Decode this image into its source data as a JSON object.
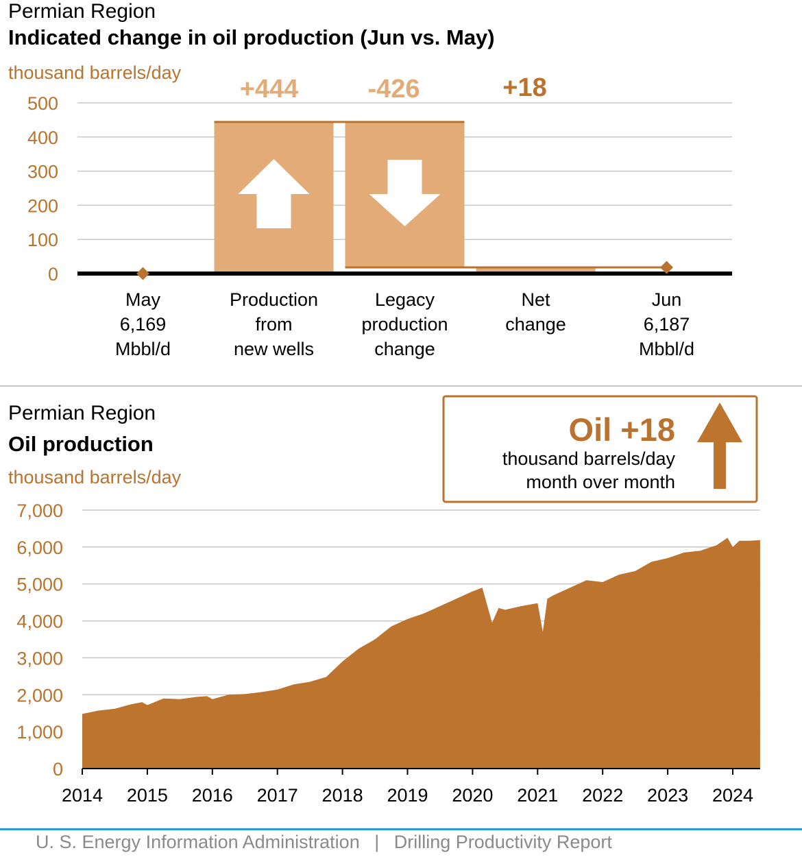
{
  "footer": {
    "agency": "U. S. Energy Information Administration",
    "divider": "|",
    "report": "Drilling Productivity Report"
  },
  "colors": {
    "accent": "#b9732e",
    "bar_fill": "#e2ab77",
    "area_fill": "#bd742e",
    "grid": "#c8c8c8",
    "footer_rule": "#2c9bd5"
  },
  "chart_data": [
    {
      "type": "bar",
      "subtype": "waterfall",
      "region": "Permian Region",
      "title": "Indicated change in oil production (Jun vs. May)",
      "ylabel": "thousand barrels/day",
      "ylim": [
        0,
        500
      ],
      "yticks": [
        "0",
        "100",
        "200",
        "300",
        "400",
        "500"
      ],
      "categories": [
        {
          "id": "may",
          "lines": [
            "May",
            "6,169",
            "Mbbl/d"
          ]
        },
        {
          "id": "new",
          "lines": [
            "Production",
            "from",
            "new wells"
          ]
        },
        {
          "id": "legacy",
          "lines": [
            "Legacy",
            "production",
            "change"
          ]
        },
        {
          "id": "net",
          "lines": [
            "Net",
            "change"
          ]
        },
        {
          "id": "jun",
          "lines": [
            "Jun",
            "6,187",
            "Mbbl/d"
          ]
        }
      ],
      "values": {
        "new_wells": 444,
        "legacy": -426,
        "net": 18
      },
      "value_labels": [
        "+444",
        "-426",
        "+18"
      ],
      "icons": [
        "up-arrow-icon",
        "down-arrow-icon"
      ],
      "grid": true
    },
    {
      "type": "area",
      "region": "Permian Region",
      "title": "Oil production",
      "ylabel": "thousand barrels/day",
      "ylim": [
        0,
        7000
      ],
      "yticks": [
        "0",
        "1,000",
        "2,000",
        "3,000",
        "4,000",
        "5,000",
        "6,000",
        "7,000"
      ],
      "xticks": [
        "2014",
        "2015",
        "2016",
        "2017",
        "2018",
        "2019",
        "2020",
        "2021",
        "2022",
        "2023",
        "2024"
      ],
      "grid": true,
      "x": [
        2014.0,
        2014.25,
        2014.5,
        2014.75,
        2014.92,
        2015.0,
        2015.25,
        2015.5,
        2015.75,
        2015.92,
        2016.0,
        2016.25,
        2016.5,
        2016.75,
        2017.0,
        2017.25,
        2017.5,
        2017.75,
        2018.0,
        2018.25,
        2018.5,
        2018.75,
        2019.0,
        2019.25,
        2019.5,
        2019.75,
        2020.0,
        2020.15,
        2020.3,
        2020.4,
        2020.5,
        2020.75,
        2021.0,
        2021.08,
        2021.15,
        2021.25,
        2021.5,
        2021.75,
        2022.0,
        2022.25,
        2022.5,
        2022.75,
        2023.0,
        2023.25,
        2023.5,
        2023.75,
        2023.92,
        2024.0,
        2024.1,
        2024.25,
        2024.42
      ],
      "values": [
        1480,
        1570,
        1620,
        1740,
        1800,
        1720,
        1900,
        1880,
        1940,
        1960,
        1880,
        2000,
        2020,
        2070,
        2140,
        2280,
        2350,
        2480,
        2900,
        3250,
        3500,
        3850,
        4050,
        4200,
        4400,
        4600,
        4800,
        4900,
        3950,
        4350,
        4300,
        4400,
        4480,
        3700,
        4600,
        4700,
        4900,
        5100,
        5050,
        5250,
        5350,
        5600,
        5700,
        5850,
        5900,
        6050,
        6250,
        6000,
        6170,
        6170,
        6187
      ]
    }
  ],
  "callout": {
    "headline": "Oil +18",
    "line1": "thousand barrels/day",
    "line2": "month over month",
    "icon": "up-arrow-icon"
  }
}
